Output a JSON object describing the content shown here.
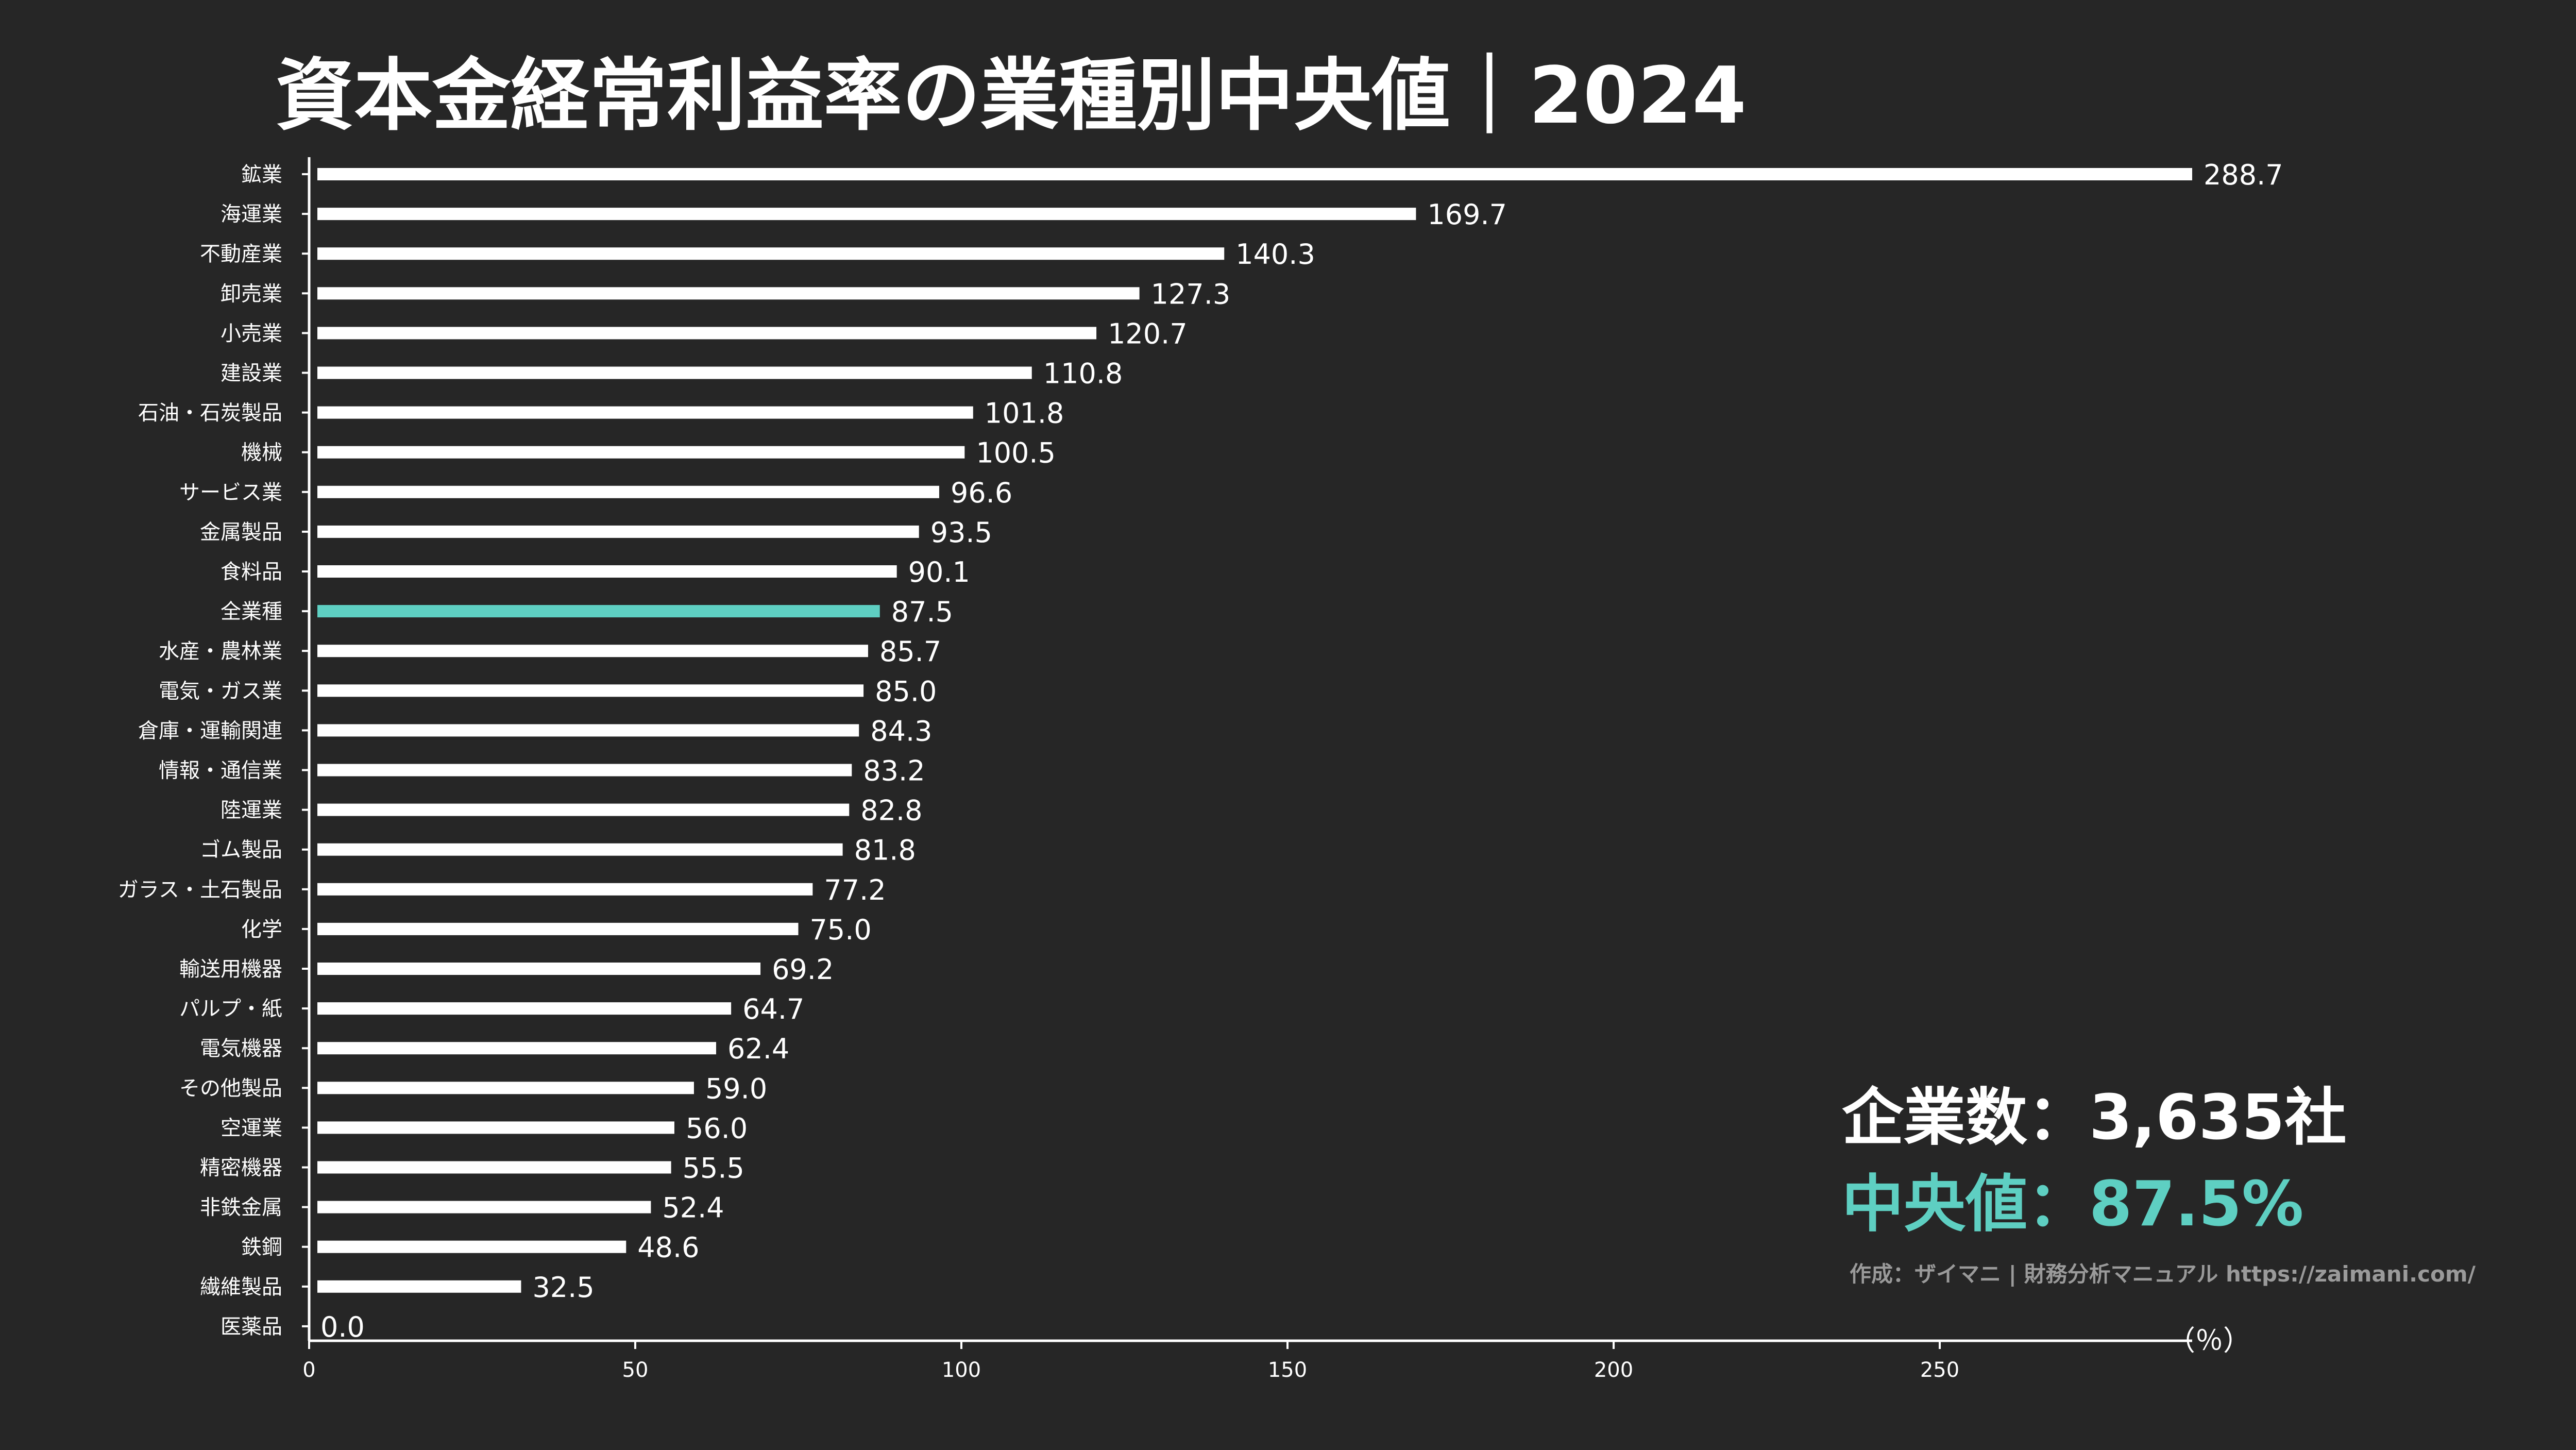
{
  "chart_data": {
    "type": "bar",
    "orientation": "horizontal",
    "title": "資本金経常利益率の業種別中央値｜2024",
    "xlabel": "（％）",
    "xlim": [
      0,
      288.7
    ],
    "xticks": [
      0,
      50,
      100,
      150,
      200,
      250
    ],
    "grid": false,
    "categories": [
      "鉱業",
      "海運業",
      "不動産業",
      "卸売業",
      "小売業",
      "建設業",
      "石油・石炭製品",
      "機械",
      "サービス業",
      "金属製品",
      "食料品",
      "全業種",
      "水産・農林業",
      "電気・ガス業",
      "倉庫・運輸関連",
      "情報・通信業",
      "陸運業",
      "ゴム製品",
      "ガラス・土石製品",
      "化学",
      "輸送用機器",
      "パルプ・紙",
      "電気機器",
      "その他製品",
      "空運業",
      "精密機器",
      "非鉄金属",
      "鉄鋼",
      "繊維製品",
      "医薬品"
    ],
    "values": [
      288.7,
      169.7,
      140.3,
      127.3,
      120.7,
      110.8,
      101.8,
      100.5,
      96.6,
      93.5,
      90.1,
      87.5,
      85.7,
      85.0,
      84.3,
      83.2,
      82.8,
      81.8,
      77.2,
      75.0,
      69.2,
      64.7,
      62.4,
      59.0,
      56.0,
      55.5,
      52.4,
      48.6,
      32.5,
      0.0
    ],
    "value_labels": [
      "288.7",
      "169.7",
      "140.3",
      "127.3",
      "120.7",
      "110.8",
      "101.8",
      "100.5",
      "96.6",
      "93.5",
      "90.1",
      "87.5",
      "85.7",
      "85.0",
      "84.3",
      "83.2",
      "82.8",
      "81.8",
      "77.2",
      "75.0",
      "69.2",
      "64.7",
      "62.4",
      "59.0",
      "56.0",
      "55.5",
      "52.4",
      "48.6",
      "32.5",
      "0.0"
    ],
    "highlight_category": "全業種"
  },
  "summary": {
    "company_count": "企業数：3,635社",
    "median": "中央値：87.5%"
  },
  "credit": "作成：ザイマニ | 財務分析マニュアル https://zaimani.com/",
  "colors": {
    "background": "#262626",
    "bar": "#ffffff",
    "highlight": "#5ecfc2",
    "text": "#ffffff",
    "credit": "#9a9a9a"
  }
}
